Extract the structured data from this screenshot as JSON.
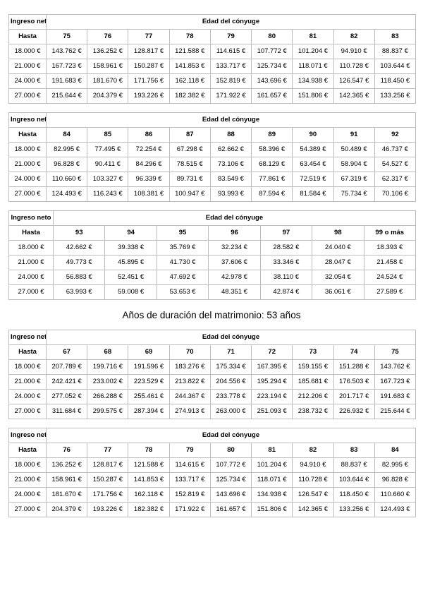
{
  "document": {
    "heading": "Años de duración del matrimonio: 53 años"
  },
  "labels": {
    "income_header": "Ingreso neto",
    "age_header": "Edad del cónyuge",
    "row_header": "Hasta"
  },
  "tables": [
    {
      "ages": [
        "75",
        "76",
        "77",
        "78",
        "79",
        "80",
        "81",
        "82",
        "83"
      ],
      "rows": [
        {
          "income": "18.000 €",
          "values": [
            "143.762 €",
            "136.252 €",
            "128.817 €",
            "121.588 €",
            "114.615 €",
            "107.772 €",
            "101.204 €",
            "94.910 €",
            "88.837 €"
          ]
        },
        {
          "income": "21.000 €",
          "values": [
            "167.723 €",
            "158.961 €",
            "150.287 €",
            "141.853 €",
            "133.717 €",
            "125.734 €",
            "118.071 €",
            "110.728 €",
            "103.644 €"
          ]
        },
        {
          "income": "24.000 €",
          "values": [
            "191.683 €",
            "181.670 €",
            "171.756 €",
            "162.118 €",
            "152.819 €",
            "143.696 €",
            "134.938 €",
            "126.547 €",
            "118.450 €"
          ]
        },
        {
          "income": "27.000 €",
          "values": [
            "215.644 €",
            "204.379 €",
            "193.226 €",
            "182.382 €",
            "171.922 €",
            "161.657 €",
            "151.806 €",
            "142.365 €",
            "133.256 €"
          ]
        }
      ]
    },
    {
      "ages": [
        "84",
        "85",
        "86",
        "87",
        "88",
        "89",
        "90",
        "91",
        "92"
      ],
      "rows": [
        {
          "income": "18.000 €",
          "values": [
            "82.995 €",
            "77.495 €",
            "72.254 €",
            "67.298 €",
            "62.662 €",
            "58.396 €",
            "54.389 €",
            "50.489 €",
            "46.737 €"
          ]
        },
        {
          "income": "21.000 €",
          "values": [
            "96.828 €",
            "90.411 €",
            "84.296 €",
            "78.515 €",
            "73.106 €",
            "68.129 €",
            "63.454 €",
            "58.904 €",
            "54.527 €"
          ]
        },
        {
          "income": "24.000 €",
          "values": [
            "110.660 €",
            "103.327 €",
            "96.339 €",
            "89.731 €",
            "83.549 €",
            "77.861 €",
            "72.519 €",
            "67.319 €",
            "62.317 €"
          ]
        },
        {
          "income": "27.000 €",
          "values": [
            "124.493 €",
            "116.243 €",
            "108.381 €",
            "100.947 €",
            "93.993 €",
            "87.594 €",
            "81.584 €",
            "75.734 €",
            "70.106 €"
          ]
        }
      ]
    },
    {
      "ages": [
        "93",
        "94",
        "95",
        "96",
        "97",
        "98",
        "99 o más"
      ],
      "rows": [
        {
          "income": "18.000 €",
          "values": [
            "42.662 €",
            "39.338 €",
            "35.769 €",
            "32.234 €",
            "28.582 €",
            "24.040 €",
            "18.393 €"
          ]
        },
        {
          "income": "21.000 €",
          "values": [
            "49.773 €",
            "45.895 €",
            "41.730 €",
            "37.606 €",
            "33.346 €",
            "28.047 €",
            "21.458 €"
          ]
        },
        {
          "income": "24.000 €",
          "values": [
            "56.883 €",
            "52.451 €",
            "47.692 €",
            "42.978 €",
            "38.110 €",
            "32.054 €",
            "24.524 €"
          ]
        },
        {
          "income": "27.000 €",
          "values": [
            "63.993 €",
            "59.008 €",
            "53.653 €",
            "48.351 €",
            "42.874 €",
            "36.061 €",
            "27.589 €"
          ]
        }
      ]
    },
    {
      "ages": [
        "67",
        "68",
        "69",
        "70",
        "71",
        "72",
        "73",
        "74",
        "75"
      ],
      "rows": [
        {
          "income": "18.000 €",
          "values": [
            "207.789 €",
            "199.716 €",
            "191.596 €",
            "183.276 €",
            "175.334 €",
            "167.395 €",
            "159.155 €",
            "151.288 €",
            "143.762 €"
          ]
        },
        {
          "income": "21.000 €",
          "values": [
            "242.421 €",
            "233.002 €",
            "223.529 €",
            "213.822 €",
            "204.556 €",
            "195.294 €",
            "185.681 €",
            "176.503 €",
            "167.723 €"
          ]
        },
        {
          "income": "24.000 €",
          "values": [
            "277.052 €",
            "266.288 €",
            "255.461 €",
            "244.367 €",
            "233.778 €",
            "223.194 €",
            "212.206 €",
            "201.717 €",
            "191.683 €"
          ]
        },
        {
          "income": "27.000 €",
          "values": [
            "311.684 €",
            "299.575 €",
            "287.394 €",
            "274.913 €",
            "263.000 €",
            "251.093 €",
            "238.732 €",
            "226.932 €",
            "215.644 €"
          ]
        }
      ]
    },
    {
      "ages": [
        "76",
        "77",
        "78",
        "79",
        "80",
        "81",
        "82",
        "83",
        "84"
      ],
      "rows": [
        {
          "income": "18.000 €",
          "values": [
            "136.252 €",
            "128.817 €",
            "121.588 €",
            "114.615 €",
            "107.772 €",
            "101.204 €",
            "94.910 €",
            "88.837 €",
            "82.995 €"
          ]
        },
        {
          "income": "21.000 €",
          "values": [
            "158.961 €",
            "150.287 €",
            "141.853 €",
            "133.717 €",
            "125.734 €",
            "118.071 €",
            "110.728 €",
            "103.644 €",
            "96.828 €"
          ]
        },
        {
          "income": "24.000 €",
          "values": [
            "181.670 €",
            "171.756 €",
            "162.118 €",
            "152.819 €",
            "143.696 €",
            "134.938 €",
            "126.547 €",
            "118.450 €",
            "110.660 €"
          ]
        },
        {
          "income": "27.000 €",
          "values": [
            "204.379 €",
            "193.226 €",
            "182.382 €",
            "171.922 €",
            "161.657 €",
            "151.806 €",
            "142.365 €",
            "133.256 €",
            "124.493 €"
          ]
        }
      ]
    }
  ]
}
